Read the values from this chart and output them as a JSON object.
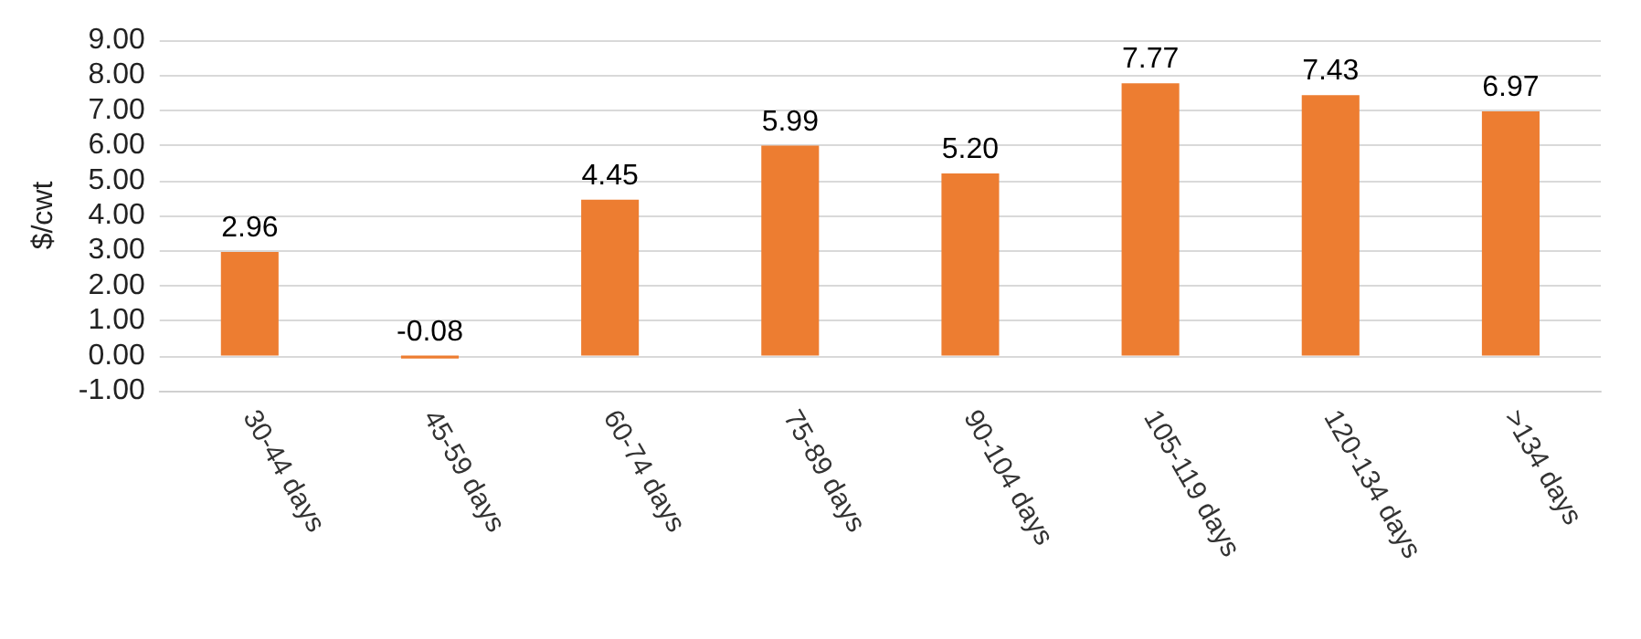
{
  "chart_data": {
    "type": "bar",
    "ylabel": "$/cwt",
    "categories": [
      "30-44 days",
      "45-59 days",
      "60-74 days",
      "75-89 days",
      "90-104 days",
      "105-119 days",
      "120-134 days",
      ">134 days"
    ],
    "values": [
      2.96,
      -0.08,
      4.45,
      5.99,
      5.2,
      7.77,
      7.43,
      6.97
    ],
    "value_labels": [
      "2.96",
      "-0.08",
      "4.45",
      "5.99",
      "5.20",
      "7.77",
      "7.43",
      "6.97"
    ],
    "color": "#ed7d31",
    "ylim": [
      -1,
      9
    ],
    "yticks": [
      {
        "value": -1,
        "label": "-1.00"
      },
      {
        "value": 0,
        "label": "0.00"
      },
      {
        "value": 1,
        "label": "1.00"
      },
      {
        "value": 2,
        "label": "2.00"
      },
      {
        "value": 3,
        "label": "3.00"
      },
      {
        "value": 4,
        "label": "4.00"
      },
      {
        "value": 5,
        "label": "5.00"
      },
      {
        "value": 6,
        "label": "6.00"
      },
      {
        "value": 7,
        "label": "7.00"
      },
      {
        "value": 8,
        "label": "8.00"
      },
      {
        "value": 9,
        "label": "9.00"
      }
    ],
    "grid": true
  }
}
